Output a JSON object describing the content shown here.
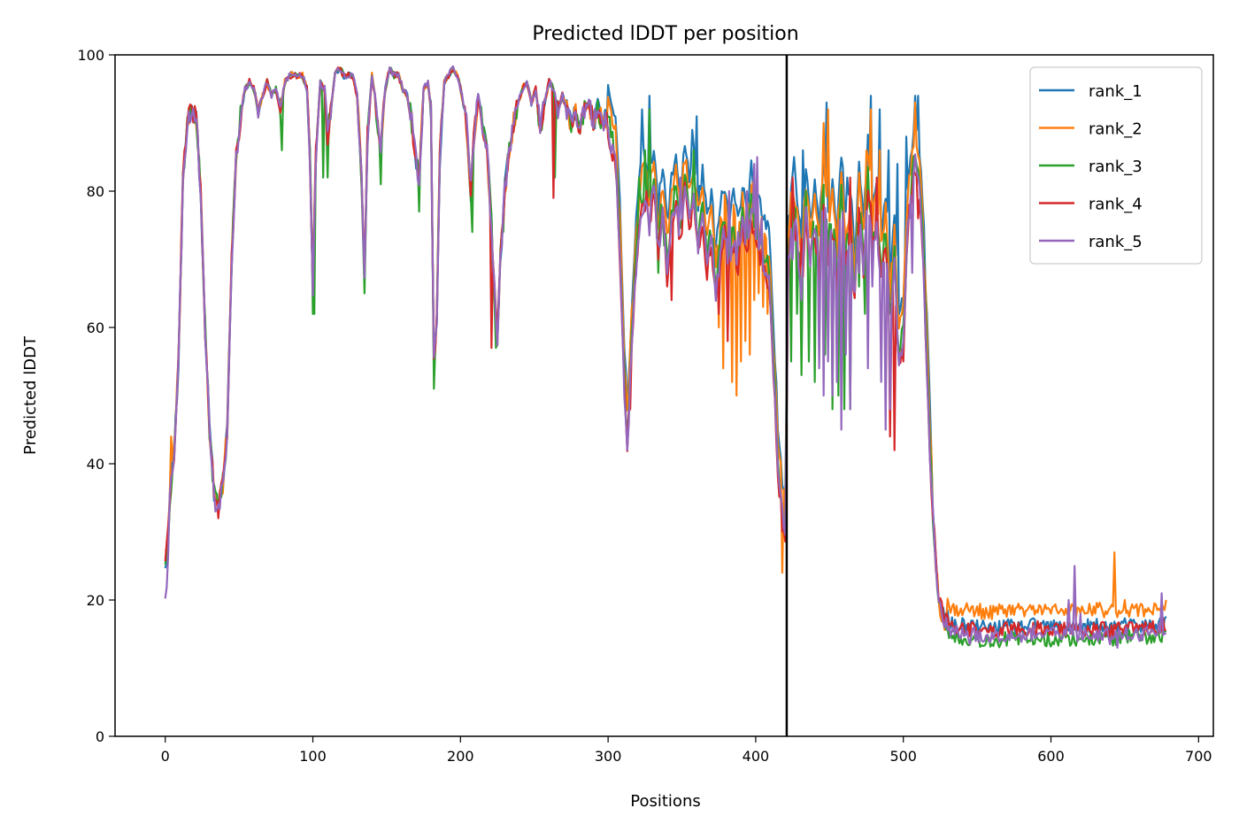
{
  "chart_data": {
    "type": "line",
    "title": "Predicted lDDT per position",
    "xlabel": "Positions",
    "ylabel": "Predicted lDDT",
    "xlim": [
      -34,
      710
    ],
    "ylim": [
      0,
      100
    ],
    "xticks": [
      0,
      100,
      200,
      300,
      400,
      500,
      600,
      700
    ],
    "yticks": [
      0,
      20,
      40,
      60,
      80,
      100
    ],
    "grid": false,
    "legend_position": "top-right",
    "vline": 421,
    "base": [
      [
        0,
        24
      ],
      [
        3,
        35
      ],
      [
        6,
        42
      ],
      [
        9,
        55
      ],
      [
        12,
        82
      ],
      [
        15,
        90
      ],
      [
        18,
        92
      ],
      [
        21,
        91
      ],
      [
        24,
        80
      ],
      [
        27,
        60
      ],
      [
        30,
        45
      ],
      [
        33,
        36
      ],
      [
        36,
        34
      ],
      [
        39,
        37
      ],
      [
        42,
        45
      ],
      [
        45,
        70
      ],
      [
        48,
        85
      ],
      [
        51,
        91
      ],
      [
        54,
        95
      ],
      [
        57,
        96
      ],
      [
        60,
        95
      ],
      [
        63,
        92
      ],
      [
        66,
        94
      ],
      [
        69,
        96
      ],
      [
        72,
        94
      ],
      [
        75,
        95
      ],
      [
        78,
        92
      ],
      [
        81,
        96
      ],
      [
        84,
        97
      ],
      [
        87,
        97
      ],
      [
        90,
        97
      ],
      [
        93,
        97
      ],
      [
        96,
        95
      ],
      [
        98,
        85
      ],
      [
        100,
        66
      ],
      [
        102,
        85
      ],
      [
        105,
        96
      ],
      [
        108,
        95
      ],
      [
        110,
        88
      ],
      [
        112,
        92
      ],
      [
        115,
        97
      ],
      [
        118,
        98
      ],
      [
        121,
        97
      ],
      [
        124,
        97
      ],
      [
        127,
        97
      ],
      [
        130,
        94
      ],
      [
        133,
        82
      ],
      [
        135,
        67
      ],
      [
        137,
        88
      ],
      [
        140,
        97
      ],
      [
        142,
        94
      ],
      [
        144,
        90
      ],
      [
        146,
        86
      ],
      [
        149,
        95
      ],
      [
        152,
        98
      ],
      [
        155,
        97
      ],
      [
        158,
        97
      ],
      [
        161,
        95
      ],
      [
        164,
        94
      ],
      [
        167,
        90
      ],
      [
        170,
        84
      ],
      [
        172,
        82
      ],
      [
        175,
        95
      ],
      [
        178,
        96
      ],
      [
        180,
        92
      ],
      [
        182,
        55
      ],
      [
        184,
        62
      ],
      [
        186,
        85
      ],
      [
        189,
        96
      ],
      [
        192,
        97
      ],
      [
        195,
        98
      ],
      [
        198,
        97
      ],
      [
        201,
        94
      ],
      [
        204,
        90
      ],
      [
        207,
        80
      ],
      [
        209,
        88
      ],
      [
        212,
        94
      ],
      [
        215,
        90
      ],
      [
        218,
        86
      ],
      [
        221,
        75
      ],
      [
        223,
        65
      ],
      [
        225,
        58
      ],
      [
        227,
        70
      ],
      [
        230,
        80
      ],
      [
        233,
        86
      ],
      [
        236,
        90
      ],
      [
        239,
        93
      ],
      [
        242,
        95
      ],
      [
        245,
        96
      ],
      [
        248,
        93
      ],
      [
        251,
        95
      ],
      [
        254,
        89
      ],
      [
        257,
        93
      ],
      [
        260,
        96
      ],
      [
        263,
        95
      ],
      [
        266,
        92
      ],
      [
        269,
        94
      ],
      [
        272,
        92
      ],
      [
        275,
        90
      ],
      [
        278,
        92
      ],
      [
        281,
        89
      ],
      [
        284,
        92
      ],
      [
        287,
        93
      ],
      [
        290,
        90
      ],
      [
        293,
        92
      ],
      [
        296,
        90
      ],
      [
        299,
        91
      ],
      [
        302,
        88
      ],
      [
        305,
        85
      ],
      [
        308,
        72
      ],
      [
        311,
        52
      ],
      [
        313,
        43
      ],
      [
        316,
        58
      ],
      [
        319,
        70
      ],
      [
        322,
        78
      ],
      [
        325,
        80
      ],
      [
        328,
        76
      ],
      [
        331,
        82
      ],
      [
        334,
        72
      ],
      [
        337,
        78
      ],
      [
        340,
        70
      ],
      [
        343,
        76
      ],
      [
        346,
        80
      ],
      [
        349,
        74
      ],
      [
        352,
        82
      ],
      [
        355,
        76
      ],
      [
        358,
        80
      ],
      [
        361,
        73
      ],
      [
        364,
        77
      ],
      [
        367,
        70
      ],
      [
        370,
        74
      ],
      [
        373,
        66
      ],
      [
        376,
        72
      ],
      [
        379,
        75
      ],
      [
        382,
        70
      ],
      [
        385,
        74
      ],
      [
        388,
        70
      ],
      [
        391,
        76
      ],
      [
        394,
        72
      ],
      [
        397,
        78
      ],
      [
        400,
        74
      ],
      [
        403,
        72
      ],
      [
        406,
        70
      ],
      [
        409,
        68
      ],
      [
        412,
        55
      ],
      [
        415,
        40
      ],
      [
        418,
        33
      ],
      [
        420,
        30
      ],
      [
        422,
        70
      ],
      [
        425,
        78
      ],
      [
        428,
        74
      ],
      [
        431,
        66
      ],
      [
        434,
        78
      ],
      [
        437,
        71
      ],
      [
        440,
        76
      ],
      [
        443,
        70
      ],
      [
        446,
        80
      ],
      [
        449,
        72
      ],
      [
        452,
        76
      ],
      [
        455,
        68
      ],
      [
        458,
        80
      ],
      [
        461,
        70
      ],
      [
        464,
        75
      ],
      [
        467,
        65
      ],
      [
        470,
        78
      ],
      [
        473,
        70
      ],
      [
        476,
        82
      ],
      [
        479,
        72
      ],
      [
        482,
        76
      ],
      [
        485,
        68
      ],
      [
        488,
        74
      ],
      [
        491,
        62
      ],
      [
        494,
        70
      ],
      [
        497,
        55
      ],
      [
        500,
        60
      ],
      [
        503,
        75
      ],
      [
        506,
        82
      ],
      [
        508,
        85
      ],
      [
        510,
        83
      ],
      [
        512,
        78
      ],
      [
        514,
        68
      ],
      [
        516,
        55
      ],
      [
        518,
        42
      ],
      [
        520,
        33
      ],
      [
        522,
        25
      ],
      [
        525,
        19
      ],
      [
        528,
        17
      ],
      [
        531,
        16
      ],
      [
        534,
        15.5
      ],
      [
        540,
        15.5
      ],
      [
        550,
        15.2
      ],
      [
        560,
        15
      ],
      [
        570,
        15.3
      ],
      [
        580,
        15.2
      ],
      [
        590,
        15.5
      ],
      [
        600,
        15.2
      ],
      [
        610,
        15.4
      ],
      [
        620,
        15.2
      ],
      [
        630,
        15.4
      ],
      [
        640,
        15.2
      ],
      [
        650,
        15.5
      ],
      [
        660,
        15.3
      ],
      [
        670,
        15.6
      ],
      [
        678,
        16
      ]
    ],
    "series": [
      {
        "name": "rank_1",
        "color": "#1f77b4",
        "start": 25.5,
        "mid": 5.5,
        "tail": 0.8,
        "seed": 11,
        "overrides": [
          [
            323,
            92
          ],
          [
            328,
            94
          ],
          [
            357,
            89
          ],
          [
            360,
            91
          ],
          [
            426,
            85
          ],
          [
            432,
            86
          ],
          [
            448,
            93
          ],
          [
            462,
            82
          ],
          [
            478,
            94
          ],
          [
            484,
            92
          ],
          [
            490,
            86
          ],
          [
            496,
            84
          ],
          [
            502,
            88
          ],
          [
            508,
            94
          ],
          [
            510,
            94
          ]
        ]
      },
      {
        "name": "rank_2",
        "color": "#ff7f0e",
        "start": 28,
        "mid": 3.5,
        "tail": 3.2,
        "seed": 23,
        "overrides": [
          [
            4,
            44
          ],
          [
            8,
            52
          ],
          [
            375,
            60
          ],
          [
            378,
            54
          ],
          [
            381,
            58
          ],
          [
            384,
            52
          ],
          [
            387,
            50
          ],
          [
            390,
            55
          ],
          [
            393,
            58
          ],
          [
            396,
            56
          ],
          [
            399,
            64
          ],
          [
            402,
            65
          ],
          [
            405,
            63
          ],
          [
            408,
            62
          ],
          [
            418,
            24
          ],
          [
            446,
            90
          ],
          [
            449,
            92
          ],
          [
            475,
            86
          ],
          [
            478,
            92
          ],
          [
            484,
            86
          ],
          [
            508,
            93
          ],
          [
            580,
            19
          ],
          [
            590,
            18.5
          ],
          [
            600,
            18
          ],
          [
            620,
            18
          ],
          [
            630,
            18
          ],
          [
            643,
            27
          ],
          [
            650,
            20
          ],
          [
            660,
            19
          ],
          [
            670,
            19.5
          ]
        ]
      },
      {
        "name": "rank_3",
        "color": "#2ca02c",
        "start": 26,
        "mid": 0.5,
        "tail": -1,
        "seed": 37,
        "overrides": [
          [
            79,
            86
          ],
          [
            100,
            62
          ],
          [
            101,
            62
          ],
          [
            107,
            82
          ],
          [
            110,
            82
          ],
          [
            135,
            65
          ],
          [
            146,
            81
          ],
          [
            172,
            77
          ],
          [
            182,
            51
          ],
          [
            208,
            74
          ],
          [
            224,
            57
          ],
          [
            229,
            74
          ],
          [
            264,
            82
          ],
          [
            321,
            82
          ],
          [
            325,
            86
          ],
          [
            328,
            92
          ],
          [
            334,
            68
          ],
          [
            338,
            72
          ],
          [
            358,
            86
          ],
          [
            424,
            55
          ],
          [
            428,
            62
          ],
          [
            431,
            53
          ],
          [
            436,
            55
          ],
          [
            440,
            52
          ],
          [
            443,
            58
          ],
          [
            447,
            56
          ],
          [
            452,
            48
          ],
          [
            456,
            50
          ],
          [
            460,
            48
          ],
          [
            464,
            48
          ],
          [
            470,
            66
          ],
          [
            474,
            62
          ],
          [
            610,
            14.5
          ],
          [
            620,
            14.3
          ],
          [
            630,
            14
          ],
          [
            640,
            14.2
          ]
        ]
      },
      {
        "name": "rank_4",
        "color": "#d62728",
        "start": 26.5,
        "mid": -1.5,
        "tail": 0.4,
        "seed": 41,
        "overrides": [
          [
            36,
            32
          ],
          [
            221,
            57
          ],
          [
            263,
            79
          ],
          [
            315,
            48
          ],
          [
            326,
            80
          ],
          [
            340,
            66
          ],
          [
            343,
            64
          ],
          [
            375,
            62
          ],
          [
            381,
            58
          ],
          [
            425,
            82
          ],
          [
            431,
            73
          ],
          [
            446,
            78
          ],
          [
            452,
            73
          ],
          [
            458,
            60
          ],
          [
            464,
            82
          ],
          [
            478,
            78
          ],
          [
            482,
            82
          ],
          [
            491,
            44
          ],
          [
            494,
            42
          ],
          [
            500,
            55
          ],
          [
            504,
            78
          ],
          [
            506,
            80
          ],
          [
            510,
            76
          ]
        ]
      },
      {
        "name": "rank_5",
        "color": "#9467bd",
        "start": 21,
        "mid": -1,
        "tail": -0.3,
        "seed": 53,
        "overrides": [
          [
            34,
            33
          ],
          [
            313,
            42
          ],
          [
            349,
            82
          ],
          [
            382,
            80
          ],
          [
            388,
            74
          ],
          [
            394,
            80
          ],
          [
            399,
            84
          ],
          [
            401,
            85
          ],
          [
            404,
            76
          ],
          [
            407,
            68
          ],
          [
            425,
            70
          ],
          [
            431,
            64
          ],
          [
            436,
            72
          ],
          [
            443,
            54
          ],
          [
            446,
            50
          ],
          [
            449,
            55
          ],
          [
            452,
            50
          ],
          [
            455,
            52
          ],
          [
            458,
            45
          ],
          [
            461,
            56
          ],
          [
            464,
            48
          ],
          [
            470,
            68
          ],
          [
            476,
            54
          ],
          [
            479,
            66
          ],
          [
            485,
            52
          ],
          [
            488,
            45
          ],
          [
            491,
            48
          ],
          [
            500,
            58
          ],
          [
            506,
            68
          ],
          [
            545,
            13.5
          ],
          [
            555,
            14
          ],
          [
            600,
            15.8
          ],
          [
            612,
            20
          ],
          [
            616,
            25
          ],
          [
            620,
            18
          ],
          [
            630,
            14.3
          ],
          [
            640,
            13.5
          ],
          [
            645,
            13
          ],
          [
            660,
            14
          ],
          [
            675,
            21
          ]
        ]
      }
    ]
  }
}
